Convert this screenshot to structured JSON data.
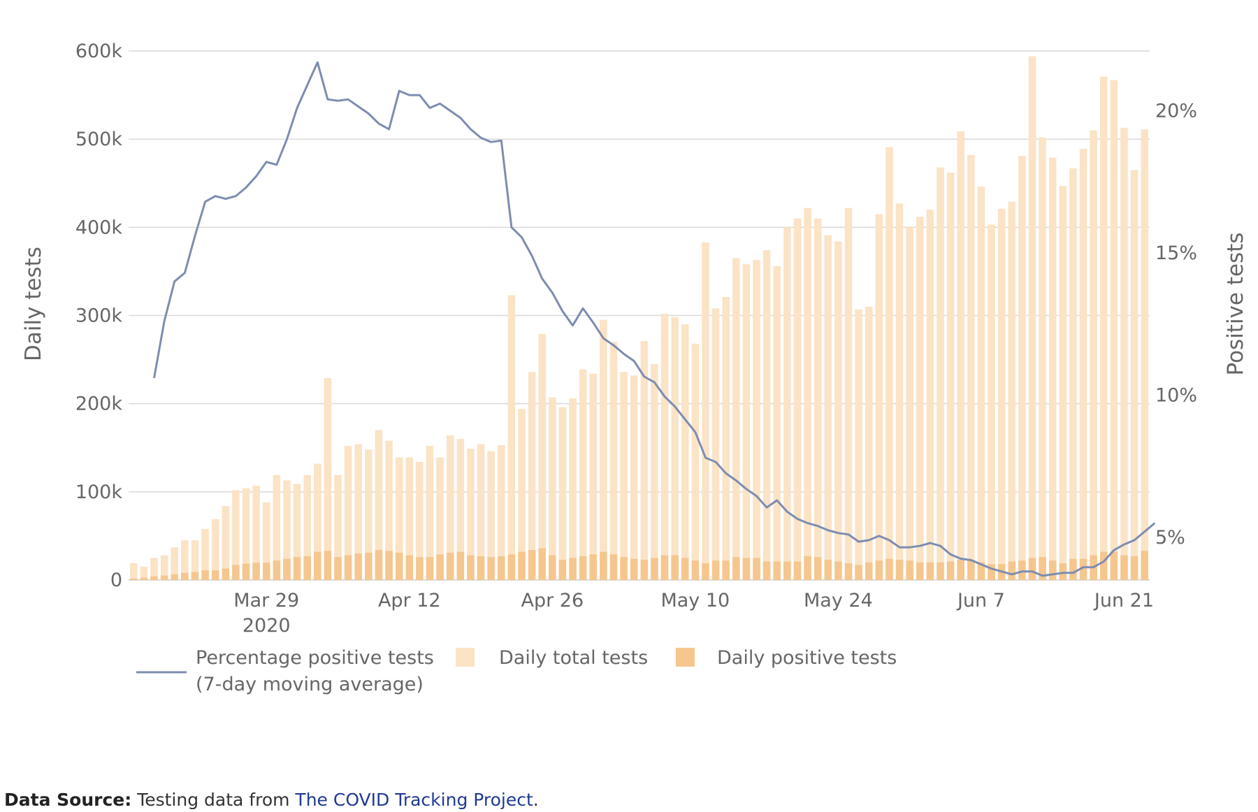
{
  "chart_data": {
    "type": "bar+line",
    "start_date": "2020-03-16",
    "x_tick_labels": [
      "Mar 29",
      "Apr 12",
      "Apr 26",
      "May 10",
      "May 24",
      "Jun 7",
      "Jun 21"
    ],
    "x_tick_indices": [
      13,
      27,
      41,
      55,
      69,
      83,
      97
    ],
    "x_year_label": "2020",
    "left_axis": {
      "title": "Daily tests",
      "min": 0,
      "max": 600000,
      "ticks": [
        0,
        100000,
        200000,
        300000,
        400000,
        500000,
        600000
      ],
      "tick_labels": [
        "0",
        "100k",
        "200k",
        "300k",
        "400k",
        "500k",
        "600k"
      ]
    },
    "right_axis": {
      "title": "Positive tests",
      "min": 3.5,
      "max": 22.1,
      "ticks": [
        5,
        10,
        15,
        20
      ],
      "tick_labels": [
        "5%",
        "10%",
        "15%",
        "20%"
      ]
    },
    "series": [
      {
        "name": "Daily total tests",
        "kind": "bar",
        "color": "#fbe3c5",
        "values": [
          19000,
          15000,
          25000,
          28000,
          37000,
          45000,
          45000,
          58000,
          69000,
          84000,
          102000,
          104000,
          107000,
          88000,
          119000,
          113000,
          109000,
          119000,
          132000,
          229000,
          119000,
          152000,
          154000,
          148000,
          170000,
          158000,
          139000,
          139000,
          134000,
          152000,
          139000,
          164000,
          160000,
          149000,
          154000,
          146000,
          153000,
          323000,
          194000,
          236000,
          279000,
          207000,
          196000,
          206000,
          239000,
          234000,
          295000,
          270000,
          236000,
          232000,
          271000,
          245000,
          302000,
          298000,
          290000,
          268000,
          383000,
          308000,
          321000,
          365000,
          358000,
          363000,
          374000,
          356000,
          400000,
          410000,
          422000,
          410000,
          391000,
          384000,
          422000,
          307000,
          310000,
          415000,
          491000,
          427000,
          401000,
          412000,
          420000,
          468000,
          462000,
          509000,
          482000,
          446000,
          403000,
          421000,
          429000,
          481000,
          594000,
          502000,
          479000,
          447000,
          467000,
          489000,
          510000,
          571000,
          567000,
          513000,
          465000,
          511000
        ]
      },
      {
        "name": "Daily positive tests",
        "kind": "bar",
        "color": "#f5c68e",
        "values": [
          1500,
          2500,
          4000,
          5000,
          6500,
          8000,
          9000,
          11000,
          11000,
          13000,
          17000,
          18500,
          19500,
          19500,
          22000,
          24000,
          26000,
          27000,
          32000,
          33000,
          26000,
          28000,
          30000,
          31000,
          34000,
          33000,
          31000,
          28000,
          26000,
          26000,
          29000,
          31000,
          32000,
          28000,
          27000,
          26000,
          27000,
          29000,
          32000,
          34000,
          36000,
          28000,
          23000,
          25000,
          27000,
          29000,
          32000,
          29000,
          26000,
          24000,
          23000,
          25000,
          28000,
          28000,
          25000,
          22000,
          19000,
          22000,
          22000,
          26000,
          25000,
          25000,
          21000,
          21000,
          21000,
          21000,
          27000,
          26000,
          23000,
          21000,
          19000,
          17000,
          20000,
          22000,
          24000,
          23000,
          22000,
          20000,
          20000,
          20000,
          21000,
          23000,
          23000,
          20000,
          18000,
          18000,
          21000,
          22000,
          25000,
          26000,
          22000,
          19000,
          24000,
          24000,
          28000,
          32000,
          32000,
          28000,
          27000,
          33000
        ]
      },
      {
        "name": "Percentage positive tests (7-day moving average)",
        "kind": "line",
        "color": "#7d8db0",
        "start_index": 2,
        "values": [
          10.6,
          12.6,
          14.0,
          14.3,
          15.6,
          16.8,
          17.0,
          16.9,
          17.0,
          17.3,
          17.7,
          18.2,
          18.1,
          19.0,
          20.1,
          20.9,
          21.7,
          20.4,
          20.35,
          20.4,
          20.15,
          19.9,
          19.55,
          19.35,
          20.7,
          20.55,
          20.55,
          20.1,
          20.25,
          20.0,
          19.75,
          19.35,
          19.05,
          18.9,
          18.95,
          15.9,
          15.55,
          14.9,
          14.1,
          13.6,
          12.95,
          12.45,
          13.05,
          12.55,
          12.0,
          11.75,
          11.45,
          11.2,
          10.65,
          10.45,
          9.95,
          9.6,
          9.15,
          8.7,
          7.8,
          7.65,
          7.25,
          7.0,
          6.7,
          6.45,
          6.05,
          6.3,
          5.9,
          5.65,
          5.5,
          5.4,
          5.25,
          5.15,
          5.1,
          4.85,
          4.9,
          5.05,
          4.9,
          4.65,
          4.65,
          4.7,
          4.8,
          4.7,
          4.4,
          4.25,
          4.2,
          4.05,
          3.9,
          3.8,
          3.7,
          3.8,
          3.8,
          3.65,
          3.7,
          3.75,
          3.75,
          3.95,
          3.95,
          4.15,
          4.55,
          4.75,
          4.9,
          5.2,
          5.5
        ]
      }
    ],
    "legend": [
      {
        "series": "Percentage positive tests (7-day moving average)",
        "label_line1": "Percentage positive tests",
        "label_line2": "(7-day moving average)"
      },
      {
        "series": "Daily total tests",
        "label_line1": "Daily total tests"
      },
      {
        "series": "Daily positive tests",
        "label_line1": "Daily positive tests"
      }
    ],
    "grid": true
  },
  "source": {
    "label": "Data Source:",
    "text": "Testing data from",
    "link_text": "The COVID Tracking Project",
    "suffix": "."
  }
}
